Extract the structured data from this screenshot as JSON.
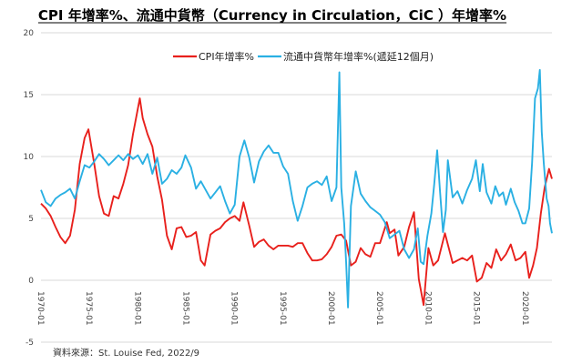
{
  "chart_data": {
    "type": "line",
    "title": "CPI 年增率%、流通中貨幣（Currency  in Circulation，CiC ）年增率%",
    "source": "資料來源：St. Louise  Fed, 2022/9",
    "xlabel": "",
    "ylabel": "",
    "ylim": [
      -5,
      20
    ],
    "yticks": [
      -5,
      0,
      5,
      10,
      15,
      20
    ],
    "xlim": [
      1970.0,
      2022.75
    ],
    "xticks": [
      {
        "value": 1970,
        "label": "1970-01"
      },
      {
        "value": 1975,
        "label": "1975-01"
      },
      {
        "value": 1980,
        "label": "1980-01"
      },
      {
        "value": 1985,
        "label": "1985-01"
      },
      {
        "value": 1990,
        "label": "1990-01"
      },
      {
        "value": 1995,
        "label": "1995-01"
      },
      {
        "value": 2000,
        "label": "2000-01"
      },
      {
        "value": 2005,
        "label": "2005-01"
      },
      {
        "value": 2010,
        "label": "2010-01"
      },
      {
        "value": 2015,
        "label": "2015-01"
      },
      {
        "value": 2020,
        "label": "2020-01"
      }
    ],
    "grid": "horizontal",
    "legend_position": "top",
    "series": [
      {
        "name": "CPI年增率%",
        "color": "#e8201c",
        "points": [
          [
            1970.0,
            6.2
          ],
          [
            1970.5,
            5.8
          ],
          [
            1971.0,
            5.2
          ],
          [
            1971.5,
            4.3
          ],
          [
            1972.0,
            3.5
          ],
          [
            1972.5,
            3.0
          ],
          [
            1973.0,
            3.6
          ],
          [
            1973.5,
            5.7
          ],
          [
            1974.0,
            9.4
          ],
          [
            1974.5,
            11.5
          ],
          [
            1974.9,
            12.2
          ],
          [
            1975.5,
            9.4
          ],
          [
            1976.0,
            6.8
          ],
          [
            1976.5,
            5.4
          ],
          [
            1977.0,
            5.2
          ],
          [
            1977.5,
            6.8
          ],
          [
            1978.0,
            6.6
          ],
          [
            1978.5,
            7.8
          ],
          [
            1979.0,
            9.3
          ],
          [
            1979.5,
            11.8
          ],
          [
            1980.2,
            14.7
          ],
          [
            1980.5,
            13.1
          ],
          [
            1981.0,
            11.8
          ],
          [
            1981.5,
            10.8
          ],
          [
            1982.0,
            8.4
          ],
          [
            1982.5,
            6.5
          ],
          [
            1983.0,
            3.6
          ],
          [
            1983.5,
            2.5
          ],
          [
            1984.0,
            4.2
          ],
          [
            1984.5,
            4.3
          ],
          [
            1985.0,
            3.5
          ],
          [
            1985.5,
            3.6
          ],
          [
            1986.0,
            3.9
          ],
          [
            1986.5,
            1.6
          ],
          [
            1986.9,
            1.2
          ],
          [
            1987.5,
            3.7
          ],
          [
            1988.0,
            4.0
          ],
          [
            1988.5,
            4.2
          ],
          [
            1989.0,
            4.7
          ],
          [
            1989.5,
            5.0
          ],
          [
            1990.0,
            5.2
          ],
          [
            1990.5,
            4.8
          ],
          [
            1990.9,
            6.3
          ],
          [
            1991.5,
            4.4
          ],
          [
            1992.0,
            2.7
          ],
          [
            1992.5,
            3.1
          ],
          [
            1993.0,
            3.3
          ],
          [
            1993.5,
            2.8
          ],
          [
            1994.0,
            2.5
          ],
          [
            1994.5,
            2.8
          ],
          [
            1995.0,
            2.8
          ],
          [
            1995.5,
            2.8
          ],
          [
            1996.0,
            2.7
          ],
          [
            1996.5,
            3.0
          ],
          [
            1997.0,
            3.0
          ],
          [
            1997.5,
            2.2
          ],
          [
            1998.0,
            1.6
          ],
          [
            1998.5,
            1.6
          ],
          [
            1999.0,
            1.7
          ],
          [
            1999.5,
            2.1
          ],
          [
            2000.0,
            2.7
          ],
          [
            2000.5,
            3.6
          ],
          [
            2001.0,
            3.7
          ],
          [
            2001.5,
            3.2
          ],
          [
            2002.0,
            1.2
          ],
          [
            2002.5,
            1.5
          ],
          [
            2003.0,
            2.6
          ],
          [
            2003.5,
            2.1
          ],
          [
            2004.0,
            1.9
          ],
          [
            2004.5,
            3.0
          ],
          [
            2005.0,
            3.0
          ],
          [
            2005.7,
            4.7
          ],
          [
            2006.0,
            3.8
          ],
          [
            2006.5,
            4.1
          ],
          [
            2006.9,
            2.0
          ],
          [
            2007.5,
            2.7
          ],
          [
            2008.0,
            4.3
          ],
          [
            2008.5,
            5.5
          ],
          [
            2009.0,
            0.1
          ],
          [
            2009.5,
            -2.0
          ],
          [
            2010.0,
            2.6
          ],
          [
            2010.5,
            1.2
          ],
          [
            2011.0,
            1.6
          ],
          [
            2011.7,
            3.8
          ],
          [
            2012.0,
            2.9
          ],
          [
            2012.5,
            1.4
          ],
          [
            2013.0,
            1.6
          ],
          [
            2013.5,
            1.8
          ],
          [
            2014.0,
            1.6
          ],
          [
            2014.5,
            2.0
          ],
          [
            2015.0,
            -0.1
          ],
          [
            2015.5,
            0.2
          ],
          [
            2016.0,
            1.4
          ],
          [
            2016.5,
            1.0
          ],
          [
            2017.0,
            2.5
          ],
          [
            2017.5,
            1.6
          ],
          [
            2018.0,
            2.1
          ],
          [
            2018.5,
            2.9
          ],
          [
            2019.0,
            1.6
          ],
          [
            2019.5,
            1.8
          ],
          [
            2020.0,
            2.3
          ],
          [
            2020.4,
            0.2
          ],
          [
            2020.8,
            1.2
          ],
          [
            2021.2,
            2.6
          ],
          [
            2021.6,
            5.4
          ],
          [
            2022.0,
            7.5
          ],
          [
            2022.45,
            9.0
          ],
          [
            2022.75,
            8.2
          ]
        ]
      },
      {
        "name": "流通中貨幣年增率%(遞延12個月)",
        "color": "#2ab0e3",
        "points": [
          [
            1970.0,
            7.3
          ],
          [
            1970.5,
            6.3
          ],
          [
            1971.0,
            6.0
          ],
          [
            1971.5,
            6.6
          ],
          [
            1972.0,
            6.9
          ],
          [
            1972.5,
            7.1
          ],
          [
            1973.0,
            7.4
          ],
          [
            1973.5,
            6.6
          ],
          [
            1974.0,
            8.0
          ],
          [
            1974.5,
            9.3
          ],
          [
            1975.0,
            9.1
          ],
          [
            1975.5,
            9.6
          ],
          [
            1976.0,
            10.2
          ],
          [
            1976.5,
            9.8
          ],
          [
            1977.0,
            9.3
          ],
          [
            1977.5,
            9.7
          ],
          [
            1978.0,
            10.1
          ],
          [
            1978.5,
            9.7
          ],
          [
            1979.0,
            10.2
          ],
          [
            1979.5,
            9.8
          ],
          [
            1980.0,
            10.1
          ],
          [
            1980.5,
            9.4
          ],
          [
            1981.0,
            10.2
          ],
          [
            1981.5,
            8.6
          ],
          [
            1982.0,
            9.9
          ],
          [
            1982.5,
            7.8
          ],
          [
            1983.0,
            8.2
          ],
          [
            1983.5,
            8.9
          ],
          [
            1984.0,
            8.6
          ],
          [
            1984.5,
            9.1
          ],
          [
            1984.9,
            10.1
          ],
          [
            1985.5,
            9.1
          ],
          [
            1986.0,
            7.4
          ],
          [
            1986.5,
            8.0
          ],
          [
            1987.0,
            7.3
          ],
          [
            1987.5,
            6.6
          ],
          [
            1988.0,
            7.1
          ],
          [
            1988.5,
            7.6
          ],
          [
            1989.0,
            6.4
          ],
          [
            1989.5,
            5.4
          ],
          [
            1990.0,
            6.1
          ],
          [
            1990.5,
            10.0
          ],
          [
            1991.0,
            11.3
          ],
          [
            1991.5,
            9.9
          ],
          [
            1992.0,
            7.9
          ],
          [
            1992.5,
            9.6
          ],
          [
            1993.0,
            10.4
          ],
          [
            1993.5,
            10.9
          ],
          [
            1994.0,
            10.3
          ],
          [
            1994.5,
            10.3
          ],
          [
            1995.0,
            9.2
          ],
          [
            1995.5,
            8.6
          ],
          [
            1996.0,
            6.4
          ],
          [
            1996.5,
            4.8
          ],
          [
            1997.0,
            6.0
          ],
          [
            1997.5,
            7.5
          ],
          [
            1998.0,
            7.8
          ],
          [
            1998.5,
            8.0
          ],
          [
            1999.0,
            7.7
          ],
          [
            1999.5,
            8.4
          ],
          [
            2000.0,
            6.4
          ],
          [
            2000.5,
            7.5
          ],
          [
            2000.8,
            16.8
          ],
          [
            2001.0,
            7.5
          ],
          [
            2001.3,
            4.6
          ],
          [
            2001.5,
            1.5
          ],
          [
            2001.7,
            -2.2
          ],
          [
            2002.0,
            6.0
          ],
          [
            2002.5,
            8.8
          ],
          [
            2003.0,
            7.0
          ],
          [
            2003.5,
            6.4
          ],
          [
            2004.0,
            5.9
          ],
          [
            2004.5,
            5.6
          ],
          [
            2005.0,
            5.3
          ],
          [
            2005.5,
            4.7
          ],
          [
            2006.0,
            3.4
          ],
          [
            2006.5,
            3.7
          ],
          [
            2007.0,
            4.0
          ],
          [
            2007.5,
            2.5
          ],
          [
            2008.0,
            1.8
          ],
          [
            2008.5,
            2.5
          ],
          [
            2008.9,
            4.2
          ],
          [
            2009.2,
            1.5
          ],
          [
            2009.5,
            1.3
          ],
          [
            2009.9,
            3.6
          ],
          [
            2010.3,
            5.4
          ],
          [
            2010.6,
            7.8
          ],
          [
            2010.9,
            10.5
          ],
          [
            2011.2,
            7.1
          ],
          [
            2011.5,
            3.9
          ],
          [
            2011.8,
            5.7
          ],
          [
            2012.0,
            9.7
          ],
          [
            2012.5,
            6.7
          ],
          [
            2013.0,
            7.2
          ],
          [
            2013.5,
            6.2
          ],
          [
            2014.0,
            7.3
          ],
          [
            2014.5,
            8.2
          ],
          [
            2014.9,
            9.7
          ],
          [
            2015.3,
            7.2
          ],
          [
            2015.6,
            9.4
          ],
          [
            2016.0,
            7.1
          ],
          [
            2016.5,
            6.2
          ],
          [
            2016.9,
            7.6
          ],
          [
            2017.3,
            6.8
          ],
          [
            2017.7,
            7.1
          ],
          [
            2018.0,
            6.1
          ],
          [
            2018.5,
            7.4
          ],
          [
            2018.9,
            6.3
          ],
          [
            2019.3,
            5.6
          ],
          [
            2019.7,
            4.6
          ],
          [
            2020.0,
            4.6
          ],
          [
            2020.4,
            5.8
          ],
          [
            2020.7,
            9.5
          ],
          [
            2021.0,
            14.7
          ],
          [
            2021.3,
            15.5
          ],
          [
            2021.5,
            17.0
          ],
          [
            2021.7,
            12.0
          ],
          [
            2021.9,
            9.5
          ],
          [
            2022.2,
            6.6
          ],
          [
            2022.4,
            6.0
          ],
          [
            2022.55,
            4.6
          ],
          [
            2022.75,
            3.8
          ]
        ]
      }
    ]
  }
}
